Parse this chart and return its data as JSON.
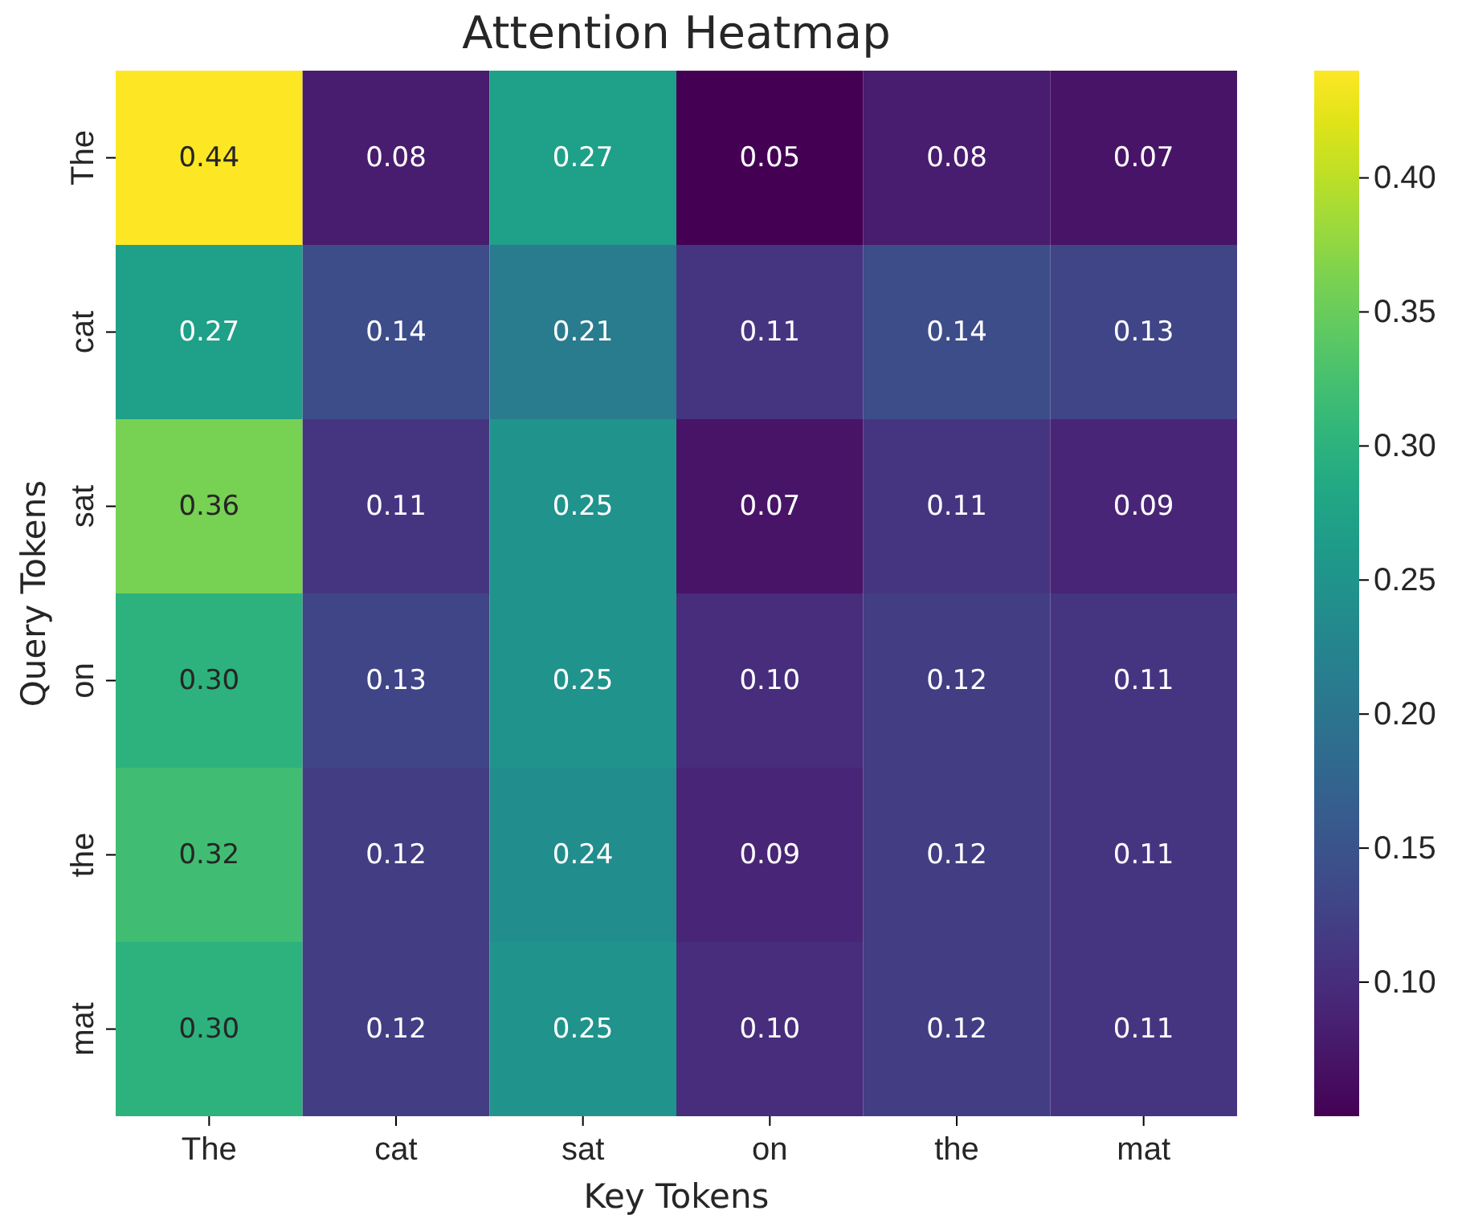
{
  "chart_data": {
    "type": "heatmap",
    "title": "Attention Heatmap",
    "xlabel": "Key Tokens",
    "ylabel": "Query Tokens",
    "categories": [
      "The",
      "cat",
      "sat",
      "on",
      "the",
      "mat"
    ],
    "y_categories": [
      "The",
      "cat",
      "sat",
      "on",
      "the",
      "mat"
    ],
    "cells": [
      [
        0.44,
        0.08,
        0.27,
        0.05,
        0.08,
        0.07
      ],
      [
        0.27,
        0.14,
        0.21,
        0.11,
        0.14,
        0.13
      ],
      [
        0.36,
        0.11,
        0.25,
        0.07,
        0.11,
        0.09
      ],
      [
        0.3,
        0.13,
        0.25,
        0.1,
        0.12,
        0.11
      ],
      [
        0.32,
        0.12,
        0.24,
        0.09,
        0.12,
        0.11
      ],
      [
        0.3,
        0.12,
        0.25,
        0.1,
        0.12,
        0.11
      ]
    ],
    "cell_labels": [
      [
        "0.44",
        "0.08",
        "0.27",
        "0.05",
        "0.08",
        "0.07"
      ],
      [
        "0.27",
        "0.14",
        "0.21",
        "0.11",
        "0.14",
        "0.13"
      ],
      [
        "0.36",
        "0.11",
        "0.25",
        "0.07",
        "0.11",
        "0.09"
      ],
      [
        "0.30",
        "0.13",
        "0.25",
        "0.10",
        "0.12",
        "0.11"
      ],
      [
        "0.32",
        "0.12",
        "0.24",
        "0.09",
        "0.12",
        "0.11"
      ],
      [
        "0.30",
        "0.12",
        "0.25",
        "0.10",
        "0.12",
        "0.11"
      ]
    ],
    "clim": [
      0.05,
      0.44
    ],
    "cticks": [
      {
        "value": 0.1,
        "label": "0.10"
      },
      {
        "value": 0.15,
        "label": "0.15"
      },
      {
        "value": 0.2,
        "label": "0.20"
      },
      {
        "value": 0.25,
        "label": "0.25"
      },
      {
        "value": 0.3,
        "label": "0.30"
      },
      {
        "value": 0.35,
        "label": "0.35"
      },
      {
        "value": 0.4,
        "label": "0.40"
      }
    ]
  }
}
